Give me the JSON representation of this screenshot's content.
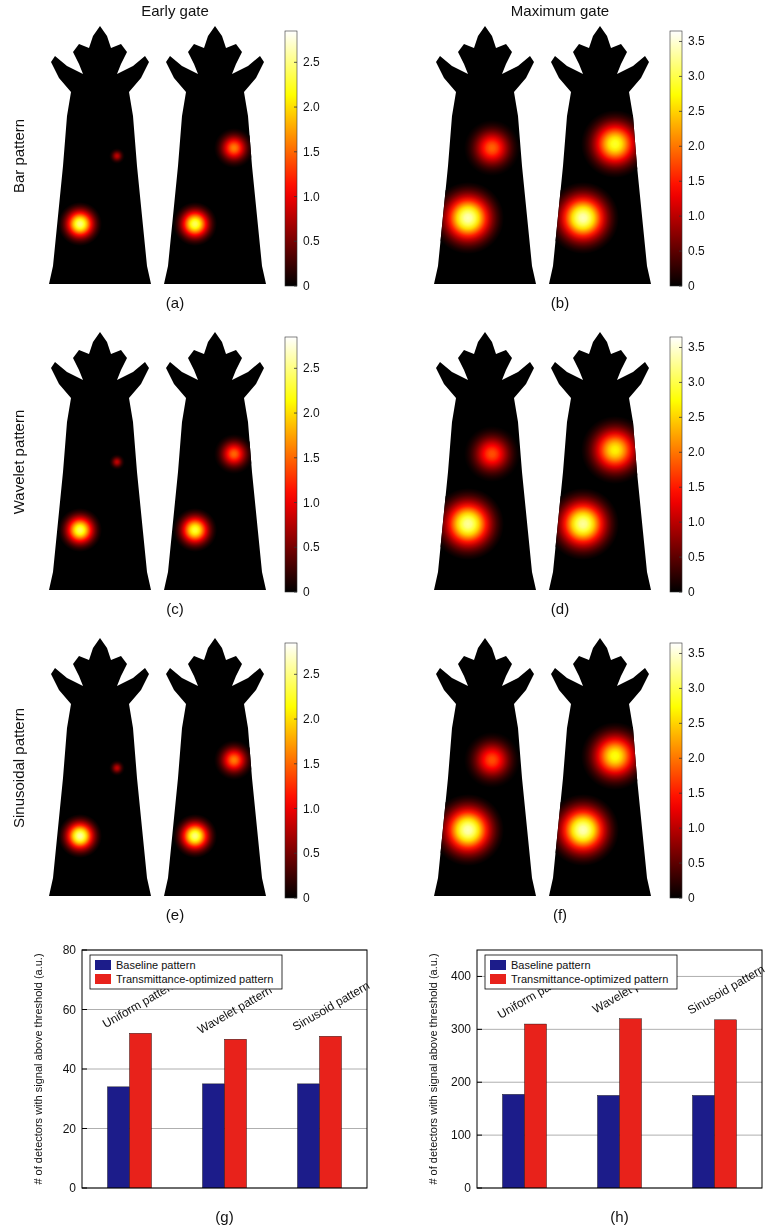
{
  "column_titles": [
    "Early gate",
    "Maximum gate"
  ],
  "row_titles": [
    "Bar pattern",
    "Wavelet pattern",
    "Sinusoidal pattern"
  ],
  "panels": [
    {
      "label": "(a)",
      "colorbar": {
        "range": [
          0,
          2.85
        ],
        "ticks": [
          0,
          0.5,
          {
            "value": 1,
            "label": "1.0"
          },
          1.5,
          {
            "value": 2,
            "label": "2.0"
          },
          2.5
        ]
      },
      "mice": [
        {
          "peaks": [
            2.5,
            0.8
          ]
        },
        {
          "peaks": [
            2.4,
            1.6
          ]
        }
      ]
    },
    {
      "label": "(b)",
      "colorbar": {
        "range": [
          0,
          3.65
        ],
        "ticks": [
          0,
          0.5,
          {
            "value": 1,
            "label": "1.0"
          },
          1.5,
          {
            "value": 2,
            "label": "2.0"
          },
          2.5,
          {
            "value": 3,
            "label": "3.0"
          },
          3.5
        ]
      },
      "mice": [
        {
          "peaks": [
            3.4,
            1.9
          ]
        },
        {
          "peaks": [
            3.4,
            2.9
          ]
        }
      ]
    },
    {
      "label": "(c)",
      "colorbar": {
        "range": [
          0,
          2.85
        ],
        "ticks": [
          0,
          0.5,
          {
            "value": 1,
            "label": "1.0"
          },
          1.5,
          {
            "value": 2,
            "label": "2.0"
          },
          2.5
        ]
      },
      "mice": [
        {
          "peaks": [
            2.4,
            0.8
          ]
        },
        {
          "peaks": [
            2.3,
            1.5
          ]
        }
      ]
    },
    {
      "label": "(d)",
      "colorbar": {
        "range": [
          0,
          3.65
        ],
        "ticks": [
          0,
          0.5,
          {
            "value": 1,
            "label": "1.0"
          },
          1.5,
          {
            "value": 2,
            "label": "2.0"
          },
          2.5,
          {
            "value": 3,
            "label": "3.0"
          },
          3.5
        ]
      },
      "mice": [
        {
          "peaks": [
            3.3,
            1.8
          ]
        },
        {
          "peaks": [
            3.3,
            2.7
          ]
        }
      ]
    },
    {
      "label": "(e)",
      "colorbar": {
        "range": [
          0,
          2.85
        ],
        "ticks": [
          0,
          0.5,
          {
            "value": 1,
            "label": "1.0"
          },
          1.5,
          {
            "value": 2,
            "label": "2.0"
          },
          2.5
        ]
      },
      "mice": [
        {
          "peaks": [
            2.6,
            0.8
          ]
        },
        {
          "peaks": [
            2.5,
            1.6
          ]
        }
      ]
    },
    {
      "label": "(f)",
      "colorbar": {
        "range": [
          0,
          3.65
        ],
        "ticks": [
          0,
          0.5,
          {
            "value": 1,
            "label": "1.0"
          },
          1.5,
          {
            "value": 2,
            "label": "2.0"
          },
          2.5,
          {
            "value": 3,
            "label": "3.0"
          },
          3.5
        ]
      },
      "mice": [
        {
          "peaks": [
            3.4,
            1.8
          ]
        },
        {
          "peaks": [
            3.4,
            2.8
          ]
        }
      ]
    }
  ],
  "chart_data": [
    {
      "type": "bar",
      "title": "(g)",
      "y_label": "# of detectors with signal above threshold (a.u.)",
      "categories": [
        "Uniform pattern",
        "Wavelet pattern",
        "Sinusoid pattern"
      ],
      "series": [
        {
          "name": "Baseline pattern",
          "color": "#1c1c8a",
          "values": [
            34,
            35,
            35
          ]
        },
        {
          "name": "Transmittance-optimized pattern",
          "color": "#e8221b",
          "values": [
            52,
            50,
            51
          ]
        }
      ],
      "ylim": [
        0,
        80
      ],
      "yticks": [
        0,
        20,
        40,
        60,
        80
      ],
      "grid": true,
      "legend": "upper left",
      "tick_labels": "y"
    },
    {
      "type": "bar",
      "title": "(h)",
      "y_label": "# of detectors with signal above threshold (a.u.)",
      "categories": [
        "Uniform pattern",
        "Wavelet pattern",
        "Sinusoid pattern"
      ],
      "series": [
        {
          "name": "Baseline pattern",
          "color": "#1c1c8a",
          "values": [
            177,
            175,
            175
          ]
        },
        {
          "name": "Transmittance-optimized pattern",
          "color": "#e8221b",
          "values": [
            310,
            320,
            318
          ]
        }
      ],
      "ylim": [
        0,
        450
      ],
      "yticks": [
        0,
        100,
        200,
        300,
        400
      ],
      "grid": true,
      "legend": "upper left",
      "tick_labels": "y"
    }
  ]
}
